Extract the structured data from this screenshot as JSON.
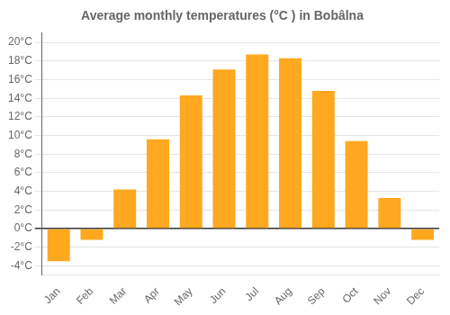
{
  "chart_data": {
    "type": "bar",
    "title": "Average monthly temperatures (°C ) in Bobâlna",
    "categories": [
      "Jan",
      "Feb",
      "Mar",
      "Apr",
      "May",
      "Jun",
      "Jul",
      "Aug",
      "Sep",
      "Oct",
      "Nov",
      "Dec"
    ],
    "values": [
      -3.5,
      -1.2,
      4.2,
      9.6,
      14.3,
      17.1,
      18.7,
      18.3,
      14.8,
      9.4,
      3.3,
      -1.2
    ],
    "color": "#FFA820",
    "ylim": [
      -5,
      21
    ],
    "yticks": [
      {
        "value": -4,
        "label": "-4°C"
      },
      {
        "value": -2,
        "label": "-2°C"
      },
      {
        "value": 0,
        "label": "0°C"
      },
      {
        "value": 2,
        "label": "2°C"
      },
      {
        "value": 4,
        "label": "4°C"
      },
      {
        "value": 6,
        "label": "6°C"
      },
      {
        "value": 8,
        "label": "8°C"
      },
      {
        "value": 10,
        "label": "10°C"
      },
      {
        "value": 12,
        "label": "12°C"
      },
      {
        "value": 14,
        "label": "14°C"
      },
      {
        "value": 16,
        "label": "16°C"
      },
      {
        "value": 18,
        "label": "18°C"
      },
      {
        "value": 20,
        "label": "20°C"
      }
    ],
    "grid": true
  }
}
